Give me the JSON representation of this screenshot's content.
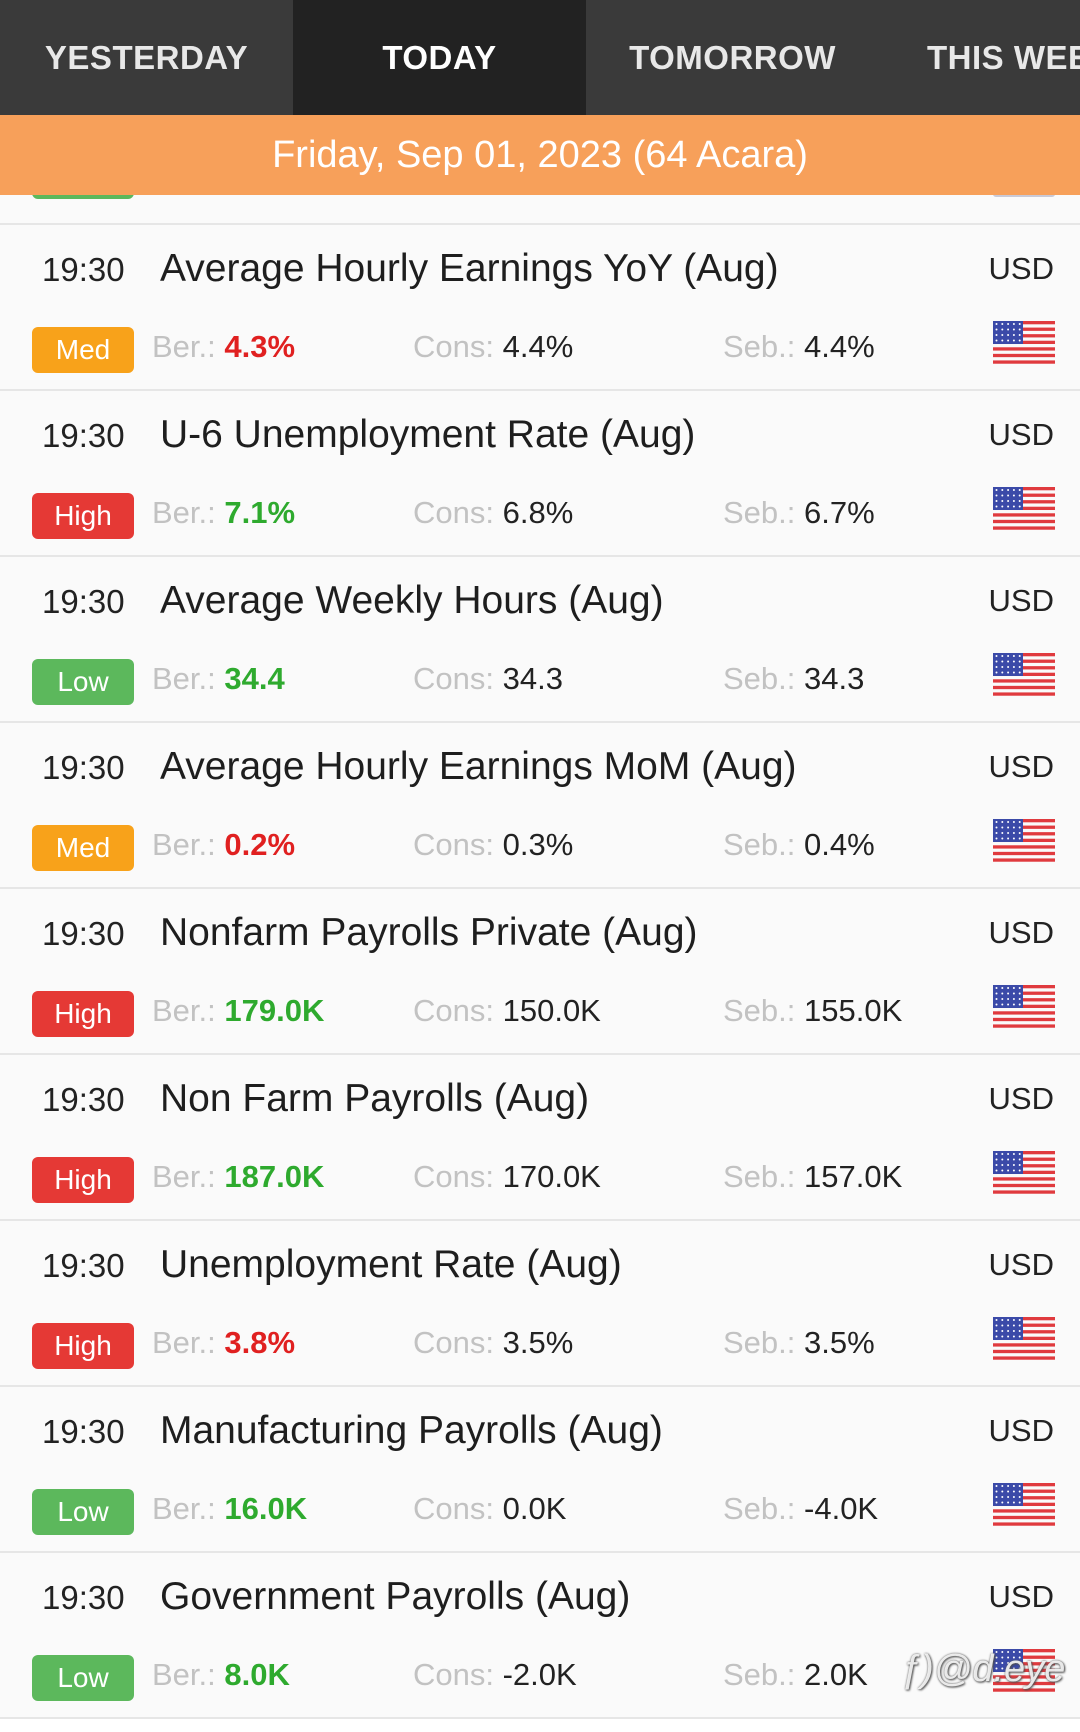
{
  "tabs": [
    {
      "label": "YESTERDAY",
      "active": false
    },
    {
      "label": "TODAY",
      "active": true
    },
    {
      "label": "TOMORROW",
      "active": false
    },
    {
      "label": "THIS WEE",
      "active": false
    }
  ],
  "date_header": "Friday, Sep 01, 2023 (64 Acara)",
  "labels": {
    "actual": "Ber.:",
    "consensus": "Cons:",
    "previous": "Seb.:"
  },
  "events": [
    {
      "time": "19:30",
      "title": "Average Hourly Earnings YoY (Aug)",
      "currency": "USD",
      "impact": "Med",
      "impact_class": "med",
      "actual": "4.3%",
      "actual_color": "red",
      "consensus": "4.4%",
      "previous": "4.4%"
    },
    {
      "time": "19:30",
      "title": "U-6 Unemployment Rate (Aug)",
      "currency": "USD",
      "impact": "High",
      "impact_class": "high",
      "actual": "7.1%",
      "actual_color": "green",
      "consensus": "6.8%",
      "previous": "6.7%"
    },
    {
      "time": "19:30",
      "title": "Average Weekly Hours (Aug)",
      "currency": "USD",
      "impact": "Low",
      "impact_class": "low",
      "actual": "34.4",
      "actual_color": "green",
      "consensus": "34.3",
      "previous": "34.3"
    },
    {
      "time": "19:30",
      "title": "Average Hourly Earnings MoM (Aug)",
      "currency": "USD",
      "impact": "Med",
      "impact_class": "med",
      "actual": "0.2%",
      "actual_color": "red",
      "consensus": "0.3%",
      "previous": "0.4%"
    },
    {
      "time": "19:30",
      "title": "Nonfarm Payrolls Private (Aug)",
      "currency": "USD",
      "impact": "High",
      "impact_class": "high",
      "actual": "179.0K",
      "actual_color": "green",
      "consensus": "150.0K",
      "previous": "155.0K"
    },
    {
      "time": "19:30",
      "title": "Non Farm Payrolls (Aug)",
      "currency": "USD",
      "impact": "High",
      "impact_class": "high",
      "actual": "187.0K",
      "actual_color": "green",
      "consensus": "170.0K",
      "previous": "157.0K"
    },
    {
      "time": "19:30",
      "title": "Unemployment Rate (Aug)",
      "currency": "USD",
      "impact": "High",
      "impact_class": "high",
      "actual": "3.8%",
      "actual_color": "red",
      "consensus": "3.5%",
      "previous": "3.5%"
    },
    {
      "time": "19:30",
      "title": "Manufacturing Payrolls (Aug)",
      "currency": "USD",
      "impact": "Low",
      "impact_class": "low",
      "actual": "16.0K",
      "actual_color": "green",
      "consensus": "0.0K",
      "previous": "-4.0K"
    },
    {
      "time": "19:30",
      "title": "Government Payrolls (Aug)",
      "currency": "USD",
      "impact": "Low",
      "impact_class": "low",
      "actual": "8.0K",
      "actual_color": "green",
      "consensus": "-2.0K",
      "previous": "2.0K"
    }
  ],
  "watermark": "ƒ)@d.eye",
  "colors": {
    "tab_bar": "#3a3a3a",
    "tab_active": "#222222",
    "date_bar": "#f7a05a",
    "med": "#f8a21a",
    "high": "#e53935",
    "low": "#5cb85c",
    "actual_red": "#e02020",
    "actual_green": "#2eaa2e"
  },
  "icons": {
    "flag": "us-flag-icon"
  }
}
